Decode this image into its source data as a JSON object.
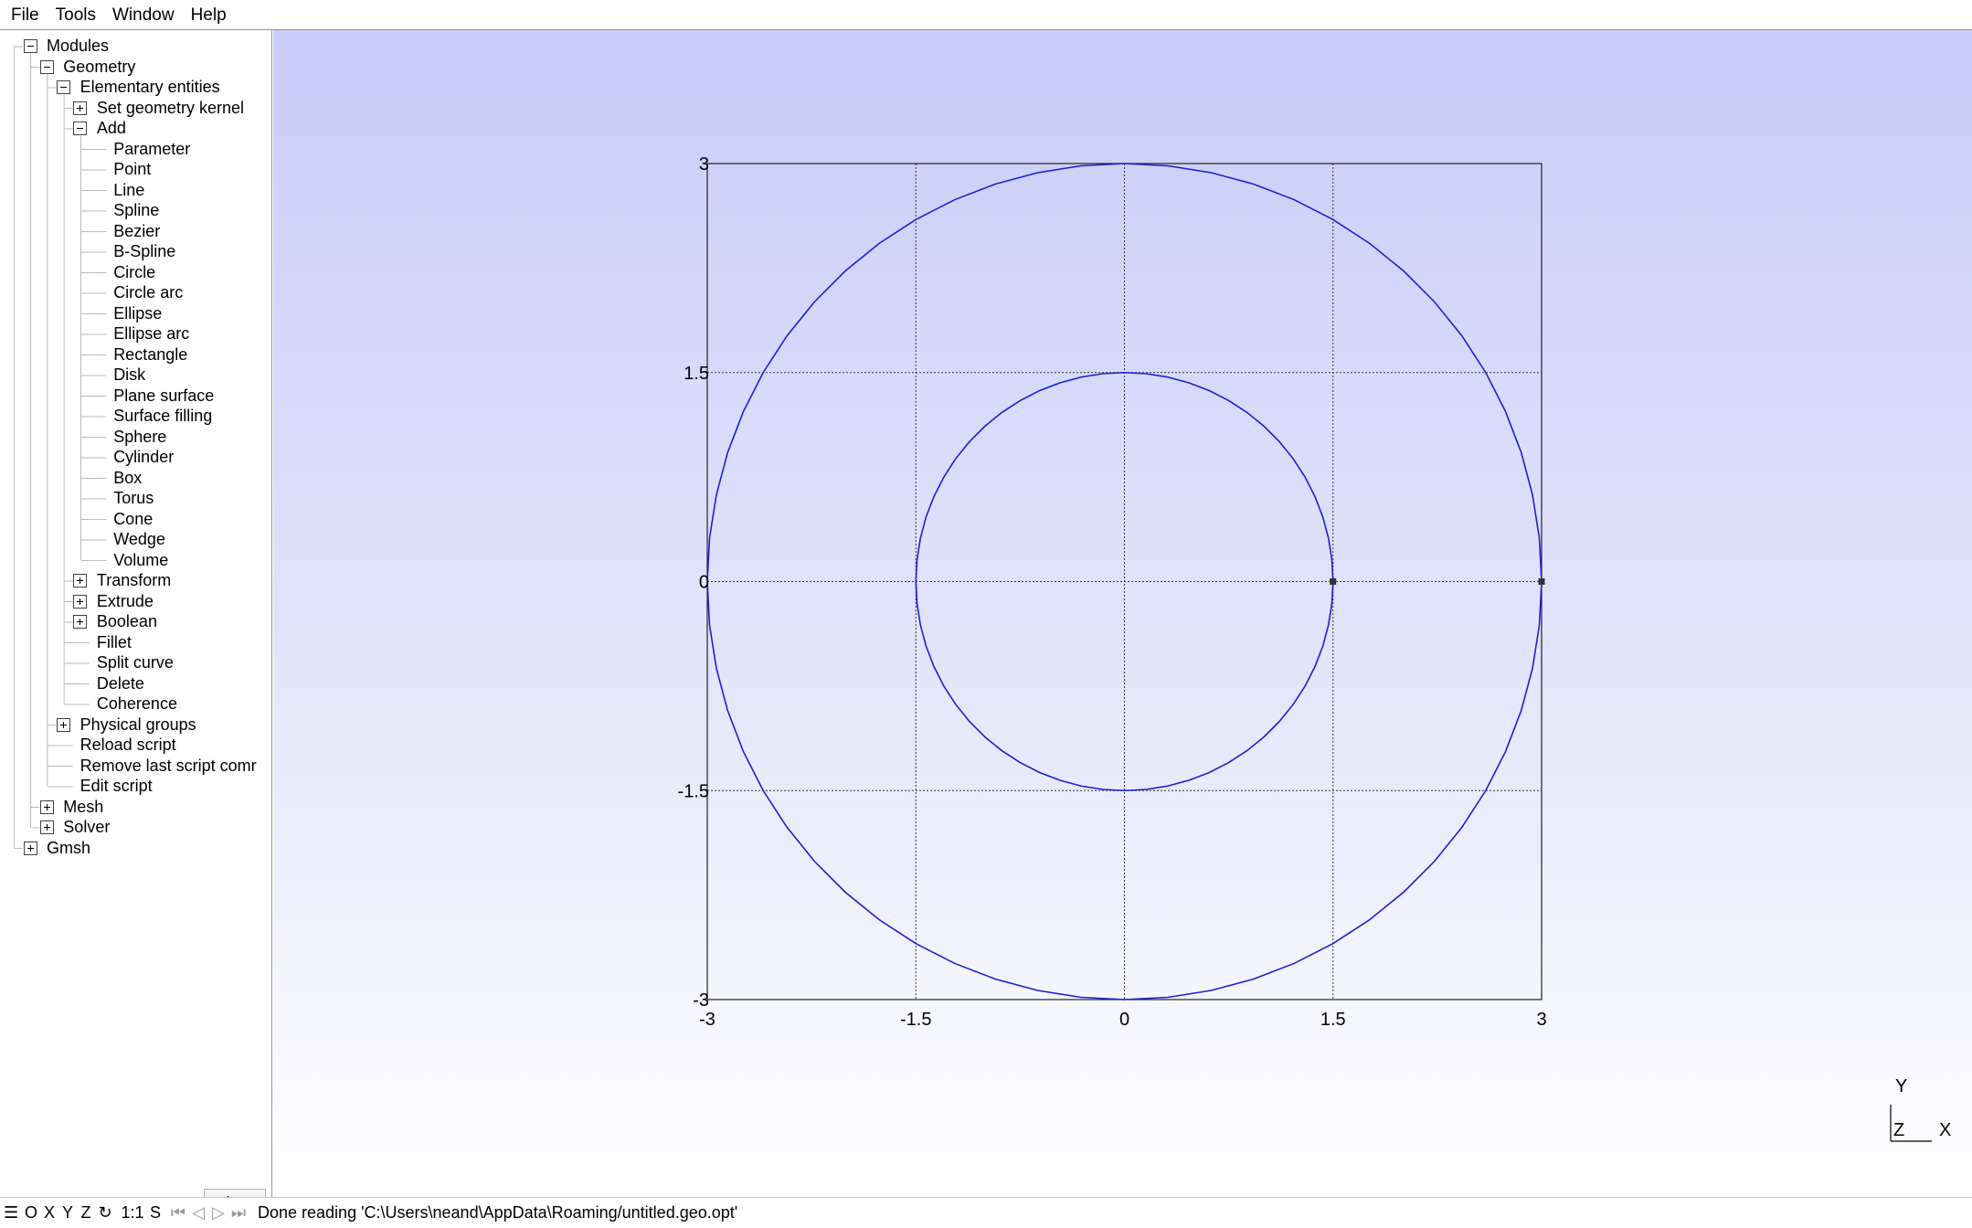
{
  "menu": {
    "items": [
      {
        "id": "file",
        "label": "File"
      },
      {
        "id": "tools",
        "label": "Tools"
      },
      {
        "id": "window",
        "label": "Window"
      },
      {
        "id": "help",
        "label": "Help"
      }
    ]
  },
  "tree": {
    "items": [
      {
        "label": "Modules",
        "depth": 0,
        "toggle": "expanded"
      },
      {
        "label": "Geometry",
        "depth": 1,
        "toggle": "expanded"
      },
      {
        "label": "Elementary entities",
        "depth": 2,
        "toggle": "expanded"
      },
      {
        "label": "Set geometry kernel",
        "depth": 3,
        "toggle": "collapsed"
      },
      {
        "label": "Add",
        "depth": 3,
        "toggle": "expanded"
      },
      {
        "label": "Parameter",
        "depth": 4,
        "toggle": "none"
      },
      {
        "label": "Point",
        "depth": 4,
        "toggle": "none"
      },
      {
        "label": "Line",
        "depth": 4,
        "toggle": "none"
      },
      {
        "label": "Spline",
        "depth": 4,
        "toggle": "none"
      },
      {
        "label": "Bezier",
        "depth": 4,
        "toggle": "none"
      },
      {
        "label": "B-Spline",
        "depth": 4,
        "toggle": "none"
      },
      {
        "label": "Circle",
        "depth": 4,
        "toggle": "none"
      },
      {
        "label": "Circle arc",
        "depth": 4,
        "toggle": "none"
      },
      {
        "label": "Ellipse",
        "depth": 4,
        "toggle": "none"
      },
      {
        "label": "Ellipse arc",
        "depth": 4,
        "toggle": "none"
      },
      {
        "label": "Rectangle",
        "depth": 4,
        "toggle": "none"
      },
      {
        "label": "Disk",
        "depth": 4,
        "toggle": "none"
      },
      {
        "label": "Plane surface",
        "depth": 4,
        "toggle": "none"
      },
      {
        "label": "Surface filling",
        "depth": 4,
        "toggle": "none"
      },
      {
        "label": "Sphere",
        "depth": 4,
        "toggle": "none"
      },
      {
        "label": "Cylinder",
        "depth": 4,
        "toggle": "none"
      },
      {
        "label": "Box",
        "depth": 4,
        "toggle": "none"
      },
      {
        "label": "Torus",
        "depth": 4,
        "toggle": "none"
      },
      {
        "label": "Cone",
        "depth": 4,
        "toggle": "none"
      },
      {
        "label": "Wedge",
        "depth": 4,
        "toggle": "none"
      },
      {
        "label": "Volume",
        "depth": 4,
        "toggle": "none"
      },
      {
        "label": "Transform",
        "depth": 3,
        "toggle": "collapsed"
      },
      {
        "label": "Extrude",
        "depth": 3,
        "toggle": "collapsed"
      },
      {
        "label": "Boolean",
        "depth": 3,
        "toggle": "collapsed"
      },
      {
        "label": "Fillet",
        "depth": 3,
        "toggle": "none"
      },
      {
        "label": "Split curve",
        "depth": 3,
        "toggle": "none"
      },
      {
        "label": "Delete",
        "depth": 3,
        "toggle": "none"
      },
      {
        "label": "Coherence",
        "depth": 3,
        "toggle": "none"
      },
      {
        "label": "Physical groups",
        "depth": 2,
        "toggle": "collapsed"
      },
      {
        "label": "Reload script",
        "depth": 2,
        "toggle": "none"
      },
      {
        "label": "Remove last script comr",
        "depth": 2,
        "toggle": "none"
      },
      {
        "label": "Edit script",
        "depth": 2,
        "toggle": "none"
      },
      {
        "label": "Mesh",
        "depth": 1,
        "toggle": "collapsed"
      },
      {
        "label": "Solver",
        "depth": 1,
        "toggle": "collapsed"
      },
      {
        "label": "Gmsh",
        "depth": 0,
        "toggle": "collapsed"
      }
    ]
  },
  "settings_button": {
    "icon": "gear-icon"
  },
  "graphics": {
    "axes": {
      "x_range": [
        -3,
        3
      ],
      "y_range": [
        -3,
        3
      ],
      "x_ticks": [
        "-3",
        "-1.5",
        "0",
        "1.5",
        "3"
      ],
      "y_ticks": [
        "3",
        "1.5",
        "0",
        "-1.5",
        "-3"
      ],
      "grid": true
    },
    "curves": [
      {
        "type": "circle",
        "cx": 0,
        "cy": 0,
        "r": 3
      },
      {
        "type": "circle",
        "cx": 0,
        "cy": 0,
        "r": 1.5
      }
    ],
    "points": [
      {
        "x": 1.5,
        "y": 0
      },
      {
        "x": 3,
        "y": 0
      }
    ],
    "triad": {
      "y": "Y",
      "z": "Z",
      "x": "X"
    },
    "colors": {
      "curve": "#1e1ed2",
      "background_top": "#c8ccf8",
      "background_bottom": "#ffffff"
    }
  },
  "statusbar": {
    "buttons": [
      {
        "id": "o",
        "label": "O"
      },
      {
        "id": "x",
        "label": "X"
      },
      {
        "id": "y",
        "label": "Y"
      },
      {
        "id": "z",
        "label": "Z"
      },
      {
        "id": "rotate",
        "label": "↻"
      },
      {
        "id": "scale",
        "label": "1:1"
      },
      {
        "id": "s",
        "label": "S"
      }
    ],
    "message": "Done reading 'C:\\Users\\neand\\AppData\\Roaming/untitled.geo.opt'"
  }
}
